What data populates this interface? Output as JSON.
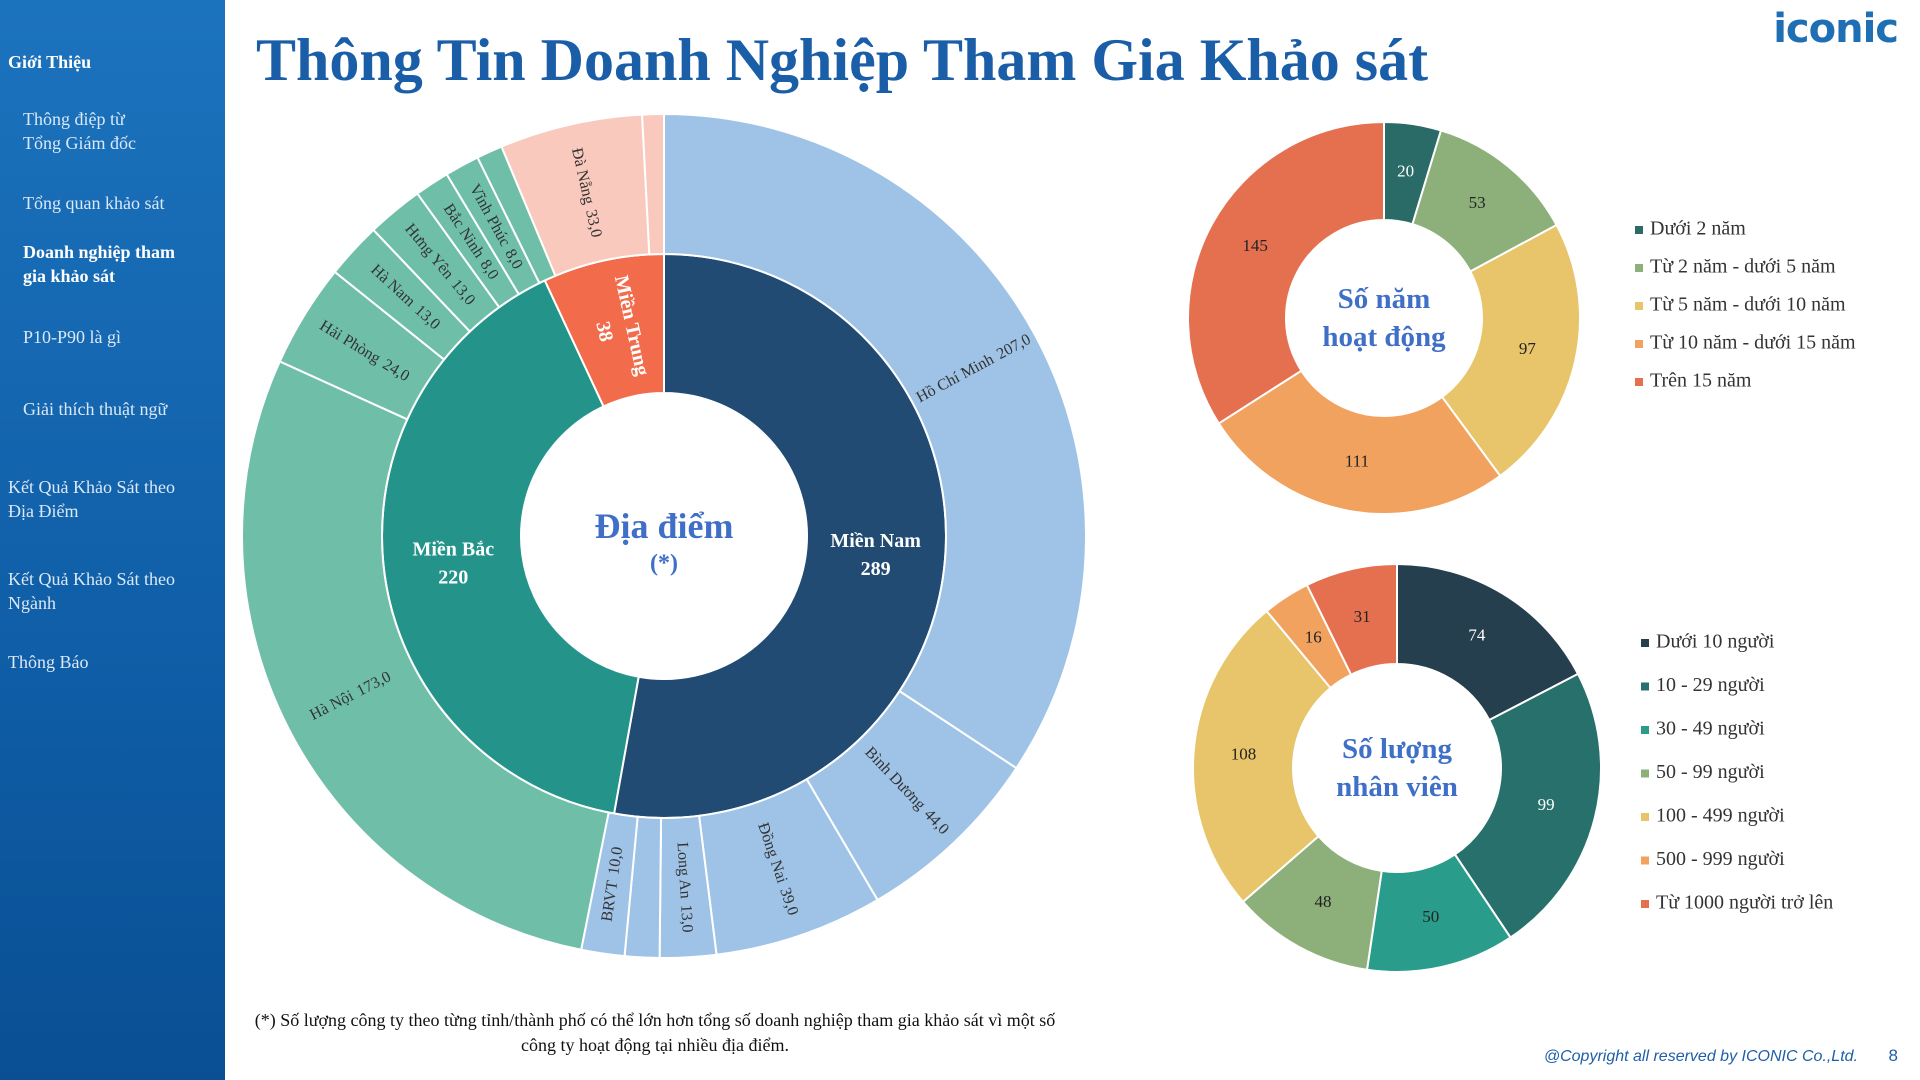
{
  "title": "Thông Tin Doanh Nghiệp Tham Gia Khảo sát",
  "logo": "iconic",
  "sidebar": [
    "Giới Thiệu",
    "Thông điệp từ\nTổng Giám đốc",
    "Tổng quan khảo sát",
    "Doanh nghiệp tham\ngia khảo sát",
    "P10-P90 là gì",
    "Giải thích thuật ngữ",
    "Kết Quả Khảo Sát  theo\nĐịa Điểm",
    "Kết Quả Khảo Sát  theo\nNgành",
    "Thông Báo"
  ],
  "footnote": "(*) Số lượng công ty theo từng tỉnh/thành phố có thể lớn hơn tổng số doanh nghiệp tham gia khảo sát vì một số công ty hoạt động tại nhiều địa điểm.",
  "copyright": "@Copyright all reserved by ICONIC Co.,Ltd.",
  "page_number": "8",
  "chart_data": [
    {
      "type": "sunburst",
      "title": "Địa điểm",
      "subtitle": "(*)",
      "rings": [
        {
          "categories": [
            "Miền Nam",
            "Miền Bắc",
            "Miền Trung"
          ],
          "values": [
            289,
            220,
            38
          ],
          "colors": [
            "#214b73",
            "#24948a",
            "#f26b4b"
          ]
        },
        {
          "categories": [
            "Hồ Chí Minh",
            "Bình Dương",
            "Đồng Nai",
            "Long An",
            null,
            "BRVT",
            "Hà Nội",
            "Hải Phòng",
            "Hà Nam",
            "Hưng Yên",
            "Bắc Ninh",
            "Vĩnh Phúc",
            null,
            "Đà Nẵng",
            null
          ],
          "values": [
            207,
            44,
            39,
            13,
            8,
            10,
            173,
            24,
            13,
            13,
            8,
            8,
            6,
            33,
            5
          ],
          "value_labels": [
            "207,0",
            "44,0",
            "39,0",
            "13,0",
            null,
            "10,0",
            "173,0",
            "24,0",
            "13,0",
            "13,0",
            "8,0",
            "8,0",
            null,
            "33,0",
            null
          ],
          "colors": [
            "#9fc3e6",
            "#9fc3e6",
            "#9fc3e6",
            "#9fc3e6",
            "#9fc3e6",
            "#9fc3e6",
            "#6fbfa8",
            "#6fbfa8",
            "#6fbfa8",
            "#6fbfa8",
            "#6fbfa8",
            "#6fbfa8",
            "#6fbfa8",
            "#f9c9bd",
            "#f9c9bd"
          ]
        }
      ]
    },
    {
      "type": "donut",
      "title": "Số năm\nhoạt động",
      "categories": [
        "Dưới 2 năm",
        "Từ 2 năm - dưới 5 năm",
        "Từ 5 năm - dưới 10 năm",
        "Từ 10 năm - dưới 15 năm",
        "Trên 15 năm"
      ],
      "values": [
        20,
        53,
        97,
        111,
        145
      ],
      "colors": [
        "#2a6b67",
        "#8db07a",
        "#e8c46a",
        "#f2a25f",
        "#e4704f"
      ],
      "legend": "right"
    },
    {
      "type": "donut",
      "title": "Số lượng\nnhân viên",
      "categories": [
        "Dưới 10 người",
        "10 - 29 người",
        "30 - 49 người",
        "50 - 99 người",
        "100 - 499 người",
        "500 - 999 người",
        "Từ 1000 người trở lên"
      ],
      "values": [
        74,
        99,
        50,
        48,
        108,
        16,
        31
      ],
      "colors": [
        "#253f4e",
        "#27706b",
        "#2a9c8c",
        "#8db07a",
        "#e8c46a",
        "#f2a25f",
        "#e4704f"
      ],
      "legend": "right"
    }
  ]
}
